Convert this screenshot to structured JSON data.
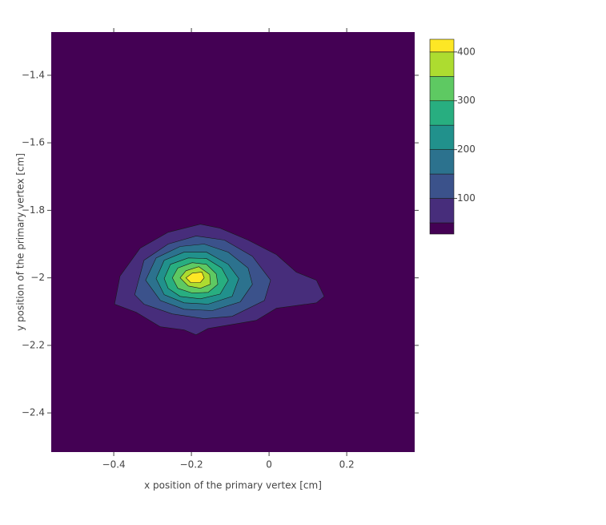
{
  "chart_data": {
    "type": "contour",
    "x_label": "x position of the primary vertex [cm]",
    "y_label": "y position of the primary vertex [cm]",
    "xlim": [
      -0.561,
      0.375
    ],
    "ylim": [
      -2.516,
      -1.272
    ],
    "xticks": [
      {
        "value": -0.4,
        "label": "−0.4"
      },
      {
        "value": -0.2,
        "label": "−0.2"
      },
      0,
      0.2
    ],
    "yticks": [
      {
        "value": -2.4,
        "label": "−2.4"
      },
      {
        "value": -2.2,
        "label": "−2.2"
      },
      {
        "value": -2,
        "label": "−2"
      },
      {
        "value": -1.8,
        "label": "−1.8"
      },
      {
        "value": -1.6,
        "label": "−1.6"
      },
      {
        "value": -1.4,
        "label": "−1.4"
      }
    ],
    "zlim": [
      27,
      426
    ],
    "zticks": [
      100,
      200,
      300,
      400
    ],
    "colors": [
      "#440154",
      "#472d7b",
      "#3b528b",
      "#2c728e",
      "#21918c",
      "#28ae80",
      "#5ec962",
      "#addc30",
      "#fde725"
    ],
    "contours": [
      {
        "level": 50,
        "x": [
          -0.398,
          -0.384,
          -0.332,
          -0.26,
          -0.177,
          -0.126,
          -0.054,
          0.019,
          0.07,
          0.122,
          0.142,
          0.122,
          0.019,
          -0.033,
          -0.095,
          -0.157,
          -0.188,
          -0.219,
          -0.28,
          -0.342
        ],
        "y": [
          -2.078,
          -1.995,
          -1.912,
          -1.865,
          -1.841,
          -1.853,
          -1.888,
          -1.931,
          -1.983,
          -2.007,
          -2.055,
          -2.074,
          -2.09,
          -2.126,
          -2.138,
          -2.15,
          -2.169,
          -2.154,
          -2.145,
          -2.102
        ]
      },
      {
        "level": 100,
        "x": [
          -0.346,
          -0.322,
          -0.26,
          -0.188,
          -0.115,
          -0.043,
          0.004,
          -0.012,
          -0.095,
          -0.167,
          -0.249,
          -0.322
        ],
        "y": [
          -2.05,
          -1.948,
          -1.9,
          -1.876,
          -1.888,
          -1.936,
          -2.007,
          -2.067,
          -2.114,
          -2.121,
          -2.107,
          -2.078
        ]
      },
      {
        "level": 150,
        "x": [
          -0.318,
          -0.291,
          -0.229,
          -0.167,
          -0.105,
          -0.054,
          -0.043,
          -0.074,
          -0.146,
          -0.219,
          -0.28
        ],
        "y": [
          -2.007,
          -1.941,
          -1.907,
          -1.9,
          -1.924,
          -1.971,
          -2.019,
          -2.071,
          -2.097,
          -2.093,
          -2.067
        ]
      },
      {
        "level": 200,
        "x": [
          -0.291,
          -0.27,
          -0.219,
          -0.161,
          -0.105,
          -0.078,
          -0.095,
          -0.157,
          -0.219,
          -0.27
        ],
        "y": [
          -2.002,
          -1.948,
          -1.924,
          -1.924,
          -1.96,
          -2.002,
          -2.055,
          -2.078,
          -2.074,
          -2.05
        ]
      },
      {
        "level": 250,
        "x": [
          -0.27,
          -0.254,
          -0.208,
          -0.161,
          -0.122,
          -0.105,
          -0.126,
          -0.177,
          -0.229,
          -0.26
        ],
        "y": [
          -2.002,
          -1.96,
          -1.941,
          -1.943,
          -1.971,
          -2.007,
          -2.048,
          -2.062,
          -2.055,
          -2.031
        ]
      },
      {
        "level": 300,
        "x": [
          -0.249,
          -0.235,
          -0.198,
          -0.161,
          -0.136,
          -0.132,
          -0.157,
          -0.198,
          -0.235
        ],
        "y": [
          -2.0,
          -1.971,
          -1.955,
          -1.96,
          -1.988,
          -2.019,
          -2.043,
          -2.045,
          -2.031
        ]
      },
      {
        "level": 350,
        "x": [
          -0.229,
          -0.214,
          -0.181,
          -0.153,
          -0.151,
          -0.177,
          -0.208
        ],
        "y": [
          -2.0,
          -1.979,
          -1.967,
          -1.99,
          -2.019,
          -2.031,
          -2.024
        ]
      },
      {
        "level": 400,
        "x": [
          -0.214,
          -0.198,
          -0.173,
          -0.167,
          -0.177,
          -0.202
        ],
        "y": [
          -2.0,
          -1.986,
          -1.983,
          -2.0,
          -2.014,
          -2.014
        ]
      }
    ]
  }
}
